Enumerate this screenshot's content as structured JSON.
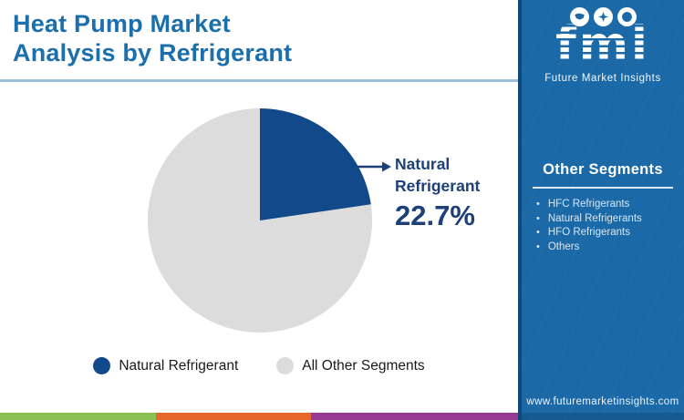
{
  "header": {
    "title_line1": "Heat Pump Market",
    "title_line2": "Analysis by Refrigerant"
  },
  "chart_data": {
    "type": "pie",
    "labels": [
      "Natural Refrigerant",
      "All Other Segments"
    ],
    "values": [
      22.7,
      77.3
    ],
    "colors": [
      "#12498b",
      "#dcdcdc"
    ],
    "title": "Heat Pump Market Analysis by Refrigerant",
    "annotation": "Natural Refrigerant 22.7%",
    "legend_position": "bottom",
    "start_angle_deg": 0,
    "direction": "clockwise"
  },
  "callout": {
    "line1": "Natural",
    "line2": "Refrigerant",
    "value": "22.7%"
  },
  "legend": {
    "items": [
      {
        "label": "Natural Refrigerant",
        "color": "#12498b"
      },
      {
        "label": "All Other Segments",
        "color": "#dcdcdc"
      }
    ]
  },
  "logo": {
    "wordmark": "fmi",
    "subtitle": "Future Market Insights",
    "icons": [
      "map-icon",
      "compass-icon",
      "globe-icon"
    ]
  },
  "sidebar": {
    "heading": "Other Segments",
    "items": [
      "HFC Refrigerants",
      "Natural Refrigerants",
      "HFO Refrigerants",
      "Others"
    ],
    "url": "www.futuremarketinsights.com"
  },
  "footer": {
    "stripes": [
      "#8cc052",
      "#e6682b",
      "#973b92"
    ]
  },
  "colors": {
    "title-blue": "#1c6fad",
    "underline-blue": "#9cc1dc",
    "callout-navy": "#1c4077",
    "sidebar-blue": "#1b69a7",
    "sidebar-edge": "#11487c",
    "sidebar-text": "#d8e7f6",
    "legend-text": "#1a1a1a"
  }
}
